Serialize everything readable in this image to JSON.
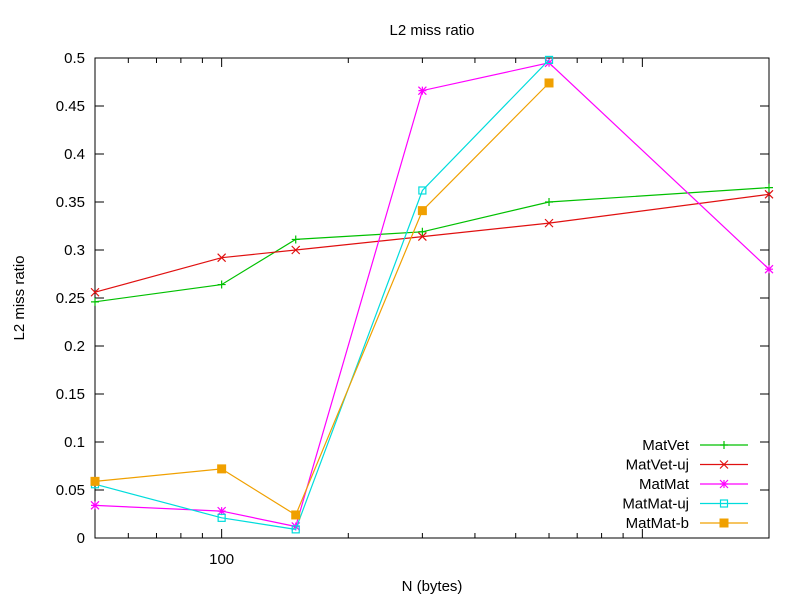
{
  "chart_data": {
    "type": "line",
    "title": "L2 miss ratio",
    "xlabel": "N (bytes)",
    "ylabel": "L2 miss ratio",
    "xscale": "log",
    "x": [
      50,
      100,
      150,
      300,
      600,
      2000
    ],
    "x_tick_labels": [
      {
        "value": 100,
        "label": "100"
      }
    ],
    "y_ticks": [
      {
        "value": 0,
        "label": "0"
      },
      {
        "value": 0.05,
        "label": "0.05"
      },
      {
        "value": 0.1,
        "label": "0.1"
      },
      {
        "value": 0.15,
        "label": "0.15"
      },
      {
        "value": 0.2,
        "label": "0.2"
      },
      {
        "value": 0.25,
        "label": "0.25"
      },
      {
        "value": 0.3,
        "label": "0.3"
      },
      {
        "value": 0.35,
        "label": "0.35"
      },
      {
        "value": 0.4,
        "label": "0.4"
      },
      {
        "value": 0.45,
        "label": "0.45"
      },
      {
        "value": 0.5,
        "label": "0.5"
      }
    ],
    "ylim": [
      0,
      0.5
    ],
    "grid": false,
    "legend_position": "bottom-right",
    "series": [
      {
        "name": "MatVet",
        "color": "#00c000",
        "marker": "plus",
        "values": [
          0.246,
          0.264,
          0.311,
          0.319,
          0.35,
          0.365
        ]
      },
      {
        "name": "MatVet-uj",
        "color": "#e01010",
        "marker": "cross",
        "values": [
          0.256,
          0.292,
          0.3,
          0.314,
          0.328,
          0.358
        ]
      },
      {
        "name": "MatMat",
        "color": "#ff00ff",
        "marker": "star",
        "values": [
          0.034,
          0.028,
          0.012,
          0.466,
          0.495,
          0.28
        ]
      },
      {
        "name": "MatMat-uj",
        "color": "#00dcdc",
        "marker": "square-open",
        "values": [
          0.056,
          0.021,
          0.009,
          0.362,
          0.498,
          null
        ]
      },
      {
        "name": "MatMat-b",
        "color": "#f0a000",
        "marker": "square-filled",
        "values": [
          0.059,
          0.072,
          0.024,
          0.341,
          0.474,
          null
        ]
      }
    ]
  }
}
